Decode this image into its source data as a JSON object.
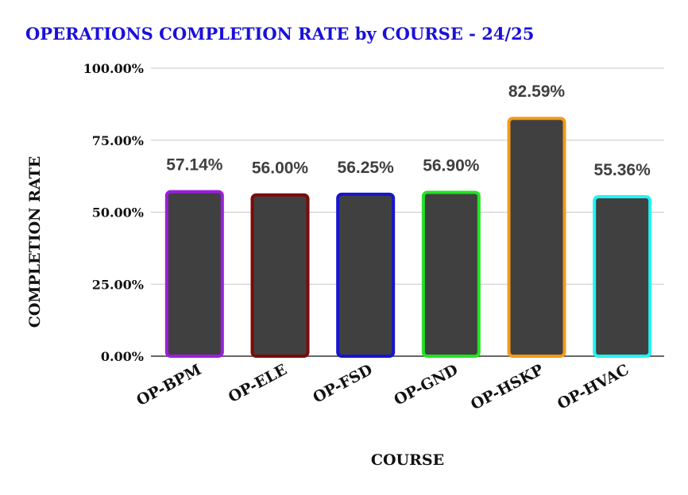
{
  "chart_data": {
    "type": "bar",
    "title": "OPERATIONS COMPLETION RATE by COURSE - 24/25",
    "xlabel": "COURSE",
    "ylabel": "COMPLETION RATE",
    "categories": [
      "OP-BPM",
      "OP-ELE",
      "OP-FSD",
      "OP-GND",
      "OP-HSKP",
      "OP-HVAC"
    ],
    "values": [
      57.14,
      56.0,
      56.25,
      56.9,
      82.59,
      55.36
    ],
    "data_labels": [
      "57.14%",
      "56.00%",
      "56.25%",
      "56.90%",
      "82.59%",
      "55.36%"
    ],
    "y_ticks": [
      0,
      25,
      50,
      75,
      100
    ],
    "y_tick_labels": [
      "0.00%",
      "25.00%",
      "50.00%",
      "75.00%",
      "100.00%"
    ],
    "ylim": [
      0,
      100
    ],
    "grid": true,
    "legend": "none",
    "bar_fill": "#404040",
    "bar_outline_colors": [
      "#9b1ee0",
      "#7a0b0b",
      "#1515d0",
      "#22e322",
      "#f39a1a",
      "#22f2f2"
    ],
    "title_color": "#1a10d8"
  }
}
